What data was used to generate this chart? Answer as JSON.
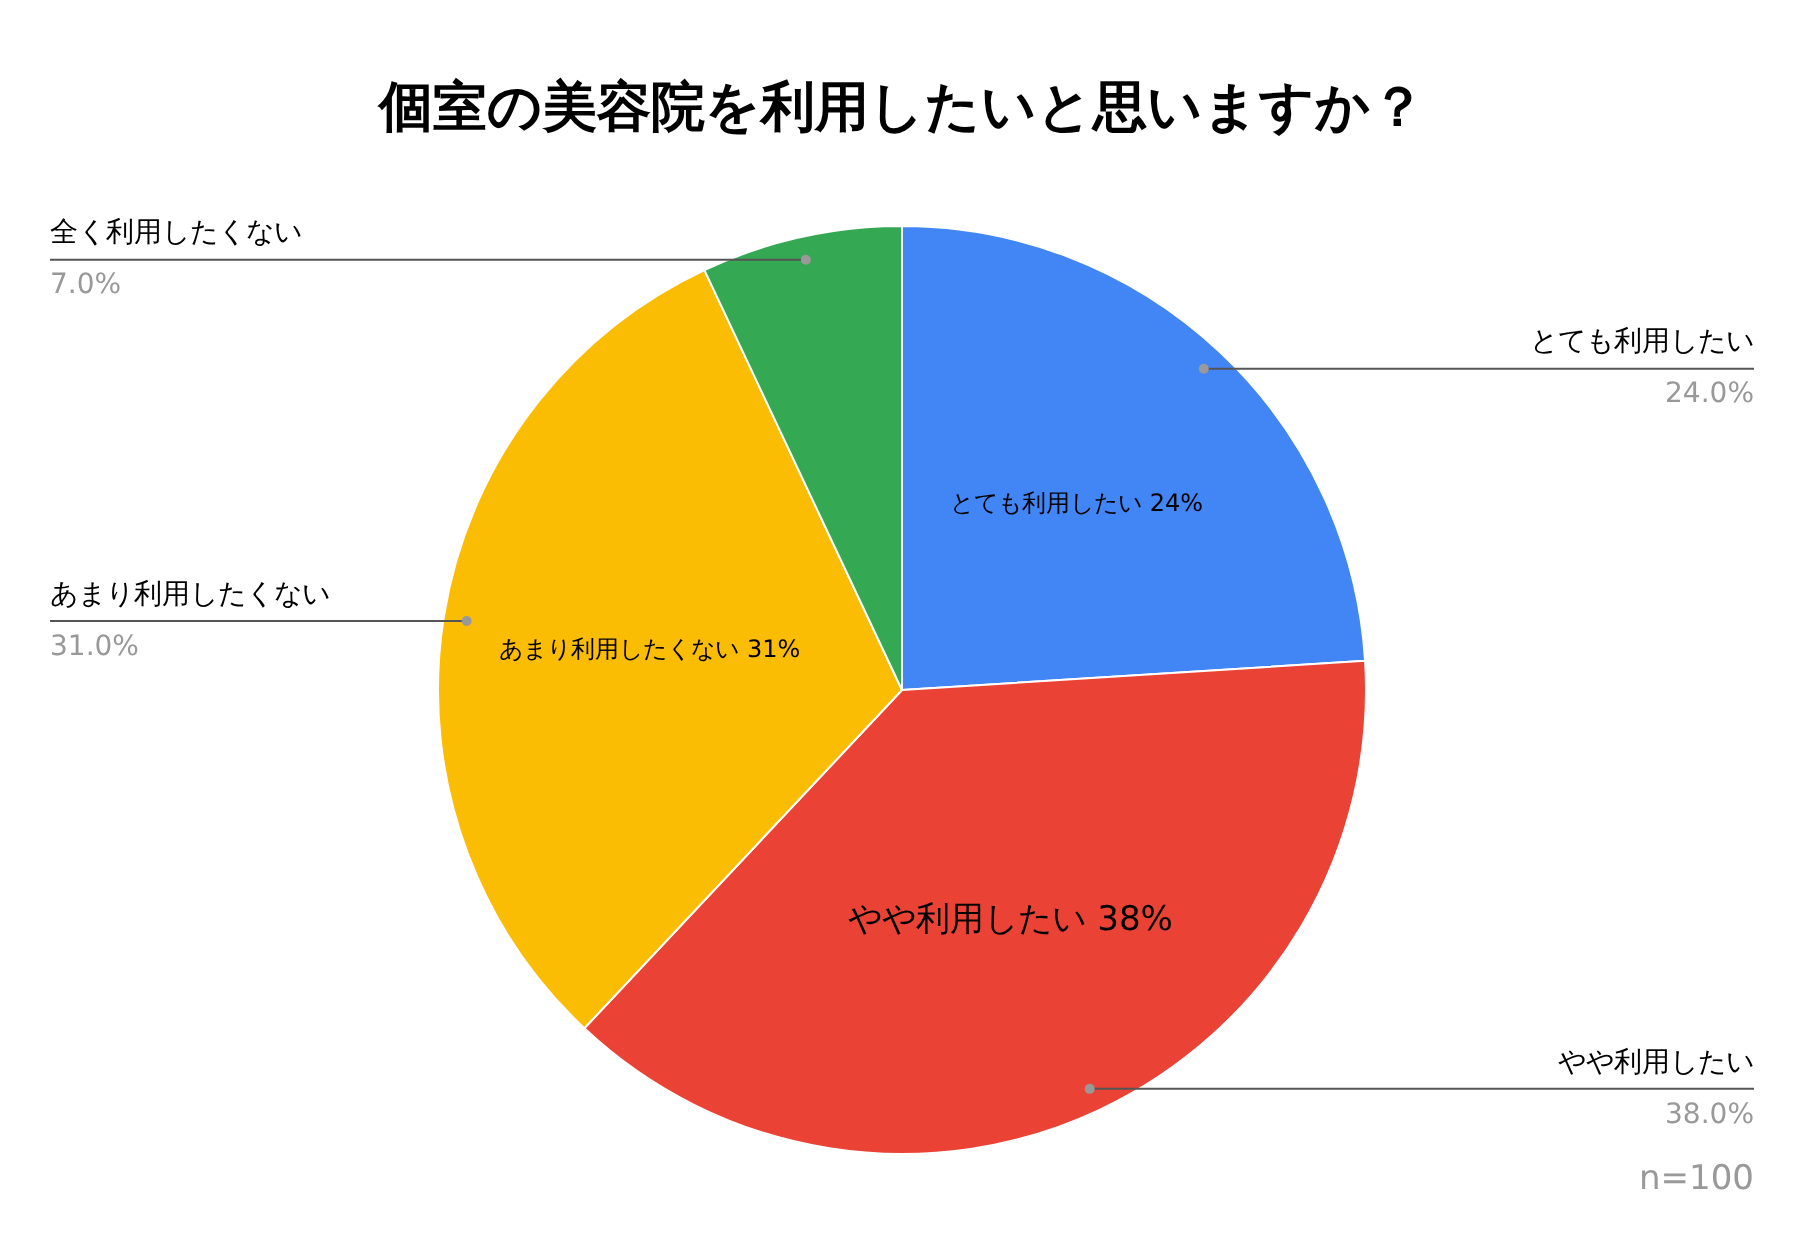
{
  "chart_data": {
    "type": "pie",
    "title": "個室の美容院を利用したいと思いますか？",
    "categories": [
      "とても利用したい",
      "やや利用したい",
      "あまり利用したくない",
      "全く利用したくない"
    ],
    "values": [
      24,
      38,
      31,
      7
    ],
    "value_labels": [
      "24.0%",
      "38.0%",
      "31.0%",
      "7.0%"
    ],
    "colors": [
      "#4285f4",
      "#ea4335",
      "#fbbc04",
      "#34a853"
    ],
    "legend": false,
    "annotations": [
      {
        "text": "とても利用したい 24%",
        "x": "とても利用したい"
      },
      {
        "text": "やや利用したい 38%",
        "x": "やや利用したい"
      },
      {
        "text": "あまり利用したくない 31%",
        "x": "あまり利用したくない"
      },
      "n=100"
    ]
  }
}
